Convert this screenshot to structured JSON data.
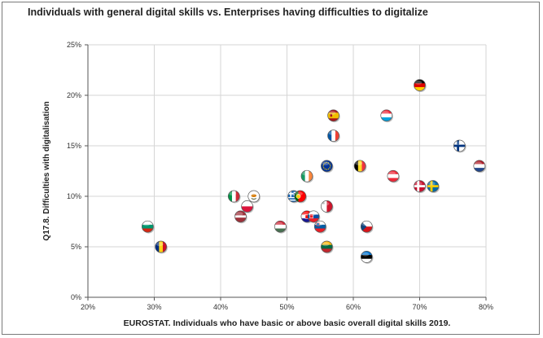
{
  "chart_data": {
    "type": "scatter",
    "title": "Individuals with general digital skills vs. Enterprises having difficulties to digitalize",
    "xlabel": "EUROSTAT. Individuals who have basic or above basic overall digital skills 2019.",
    "ylabel": "Q17.8. Difficulties with digitalisation",
    "xlim": [
      20,
      80
    ],
    "ylim": [
      0,
      25
    ],
    "x_ticks": [
      "20%",
      "30%",
      "40%",
      "50%",
      "60%",
      "70%",
      "80%"
    ],
    "y_ticks": [
      "0%",
      "5%",
      "10%",
      "15%",
      "20%",
      "25%"
    ],
    "grid": "vertical and horizontal gridlines",
    "legend": "none",
    "marker": "country flag circles",
    "points": [
      {
        "flag": "bulgaria-flag",
        "x": 29,
        "y": 7
      },
      {
        "flag": "romania-flag",
        "x": 31,
        "y": 5
      },
      {
        "flag": "italy-flag",
        "x": 42,
        "y": 10
      },
      {
        "flag": "latvia-flag",
        "x": 43,
        "y": 8
      },
      {
        "flag": "poland-flag",
        "x": 44,
        "y": 9
      },
      {
        "flag": "cyprus-flag",
        "x": 45,
        "y": 10
      },
      {
        "flag": "hungary-flag",
        "x": 49,
        "y": 7
      },
      {
        "flag": "greece-flag",
        "x": 51,
        "y": 10
      },
      {
        "flag": "portugal-flag",
        "x": 52,
        "y": 10
      },
      {
        "flag": "ireland-flag",
        "x": 53,
        "y": 12
      },
      {
        "flag": "croatia-flag",
        "x": 53,
        "y": 8
      },
      {
        "flag": "slovakia-flag",
        "x": 54,
        "y": 8
      },
      {
        "flag": "slovenia-flag",
        "x": 55,
        "y": 7
      },
      {
        "flag": "eu-flag",
        "x": 56,
        "y": 13
      },
      {
        "flag": "malta-flag",
        "x": 56,
        "y": 9
      },
      {
        "flag": "lithuania-flag",
        "x": 56,
        "y": 5
      },
      {
        "flag": "spain-flag",
        "x": 57,
        "y": 18
      },
      {
        "flag": "france-flag",
        "x": 57,
        "y": 16
      },
      {
        "flag": "belgium-flag",
        "x": 61,
        "y": 13
      },
      {
        "flag": "czechia-flag",
        "x": 62,
        "y": 7
      },
      {
        "flag": "estonia-flag",
        "x": 62,
        "y": 4
      },
      {
        "flag": "luxembourg-flag",
        "x": 65,
        "y": 18
      },
      {
        "flag": "austria-flag",
        "x": 66,
        "y": 12
      },
      {
        "flag": "germany-flag",
        "x": 70,
        "y": 21
      },
      {
        "flag": "denmark-flag",
        "x": 70,
        "y": 11
      },
      {
        "flag": "sweden-flag",
        "x": 72,
        "y": 11
      },
      {
        "flag": "finland-flag",
        "x": 76,
        "y": 15
      },
      {
        "flag": "netherlands-flag",
        "x": 79,
        "y": 13
      }
    ]
  }
}
